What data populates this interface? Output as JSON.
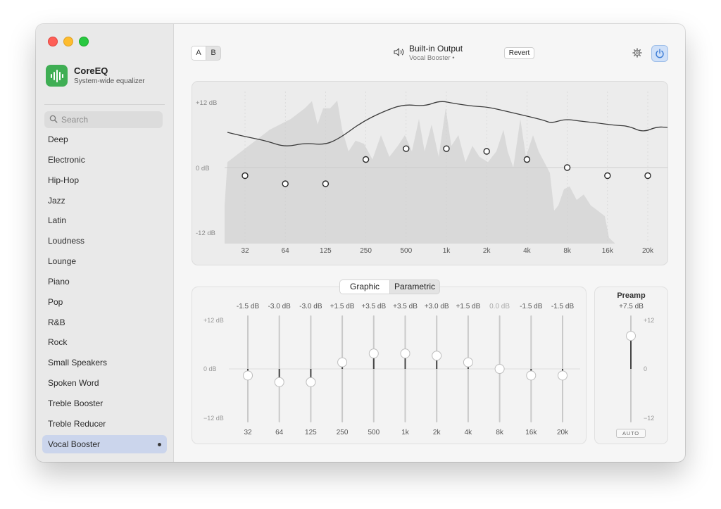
{
  "app": {
    "name": "CoreEQ",
    "subtitle": "System-wide equalizer"
  },
  "colors": {
    "accent": "#3fae54",
    "selection": "#cbd5ec",
    "power_active": "#cfe0f8"
  },
  "search": {
    "placeholder": "Search",
    "value": ""
  },
  "presets": [
    "Deep",
    "Electronic",
    "Hip-Hop",
    "Jazz",
    "Latin",
    "Loudness",
    "Lounge",
    "Piano",
    "Pop",
    "R&B",
    "Rock",
    "Small Speakers",
    "Spoken Word",
    "Treble Booster",
    "Treble Reducer",
    "Vocal Booster"
  ],
  "selected_preset": "Vocal Booster",
  "toolbar": {
    "a_label": "A",
    "b_label": "B",
    "output_name": "Built-in Output",
    "output_sub": "Vocal Booster •",
    "revert_label": "Revert",
    "settings_icon": "gear-icon",
    "power_icon": "power-icon",
    "power_on": true
  },
  "graph": {
    "y_labels": [
      "+12 dB",
      "0 dB",
      "-12 dB"
    ],
    "x_labels": [
      "32",
      "64",
      "125",
      "250",
      "500",
      "1k",
      "2k",
      "4k",
      "8k",
      "16k",
      "20k"
    ],
    "y_range_db": [
      -12,
      12
    ]
  },
  "mode_tabs": {
    "graphic": "Graphic",
    "parametric": "Parametric",
    "selected": "Graphic"
  },
  "bands": [
    {
      "freq": "32",
      "gain": -1.5,
      "label": "-1.5 dB"
    },
    {
      "freq": "64",
      "gain": -3.0,
      "label": "-3.0 dB"
    },
    {
      "freq": "125",
      "gain": -3.0,
      "label": "-3.0 dB"
    },
    {
      "freq": "250",
      "gain": 1.5,
      "label": "+1.5 dB"
    },
    {
      "freq": "500",
      "gain": 3.5,
      "label": "+3.5 dB"
    },
    {
      "freq": "1k",
      "gain": 3.5,
      "label": "+3.5 dB"
    },
    {
      "freq": "2k",
      "gain": 3.0,
      "label": "+3.0 dB"
    },
    {
      "freq": "4k",
      "gain": 1.5,
      "label": "+1.5 dB"
    },
    {
      "freq": "8k",
      "gain": 0.0,
      "label": "0.0 dB"
    },
    {
      "freq": "16k",
      "gain": -1.5,
      "label": "-1.5 dB"
    },
    {
      "freq": "20k",
      "gain": -1.5,
      "label": "-1.5 dB"
    }
  ],
  "slider_scale": [
    "+12 dB",
    "0 dB",
    "−12 dB"
  ],
  "preamp": {
    "title": "Preamp",
    "gain": 7.5,
    "label": "+7.5 dB",
    "scale": [
      "+12",
      "0",
      "−12"
    ],
    "auto_label": "AUTO"
  }
}
